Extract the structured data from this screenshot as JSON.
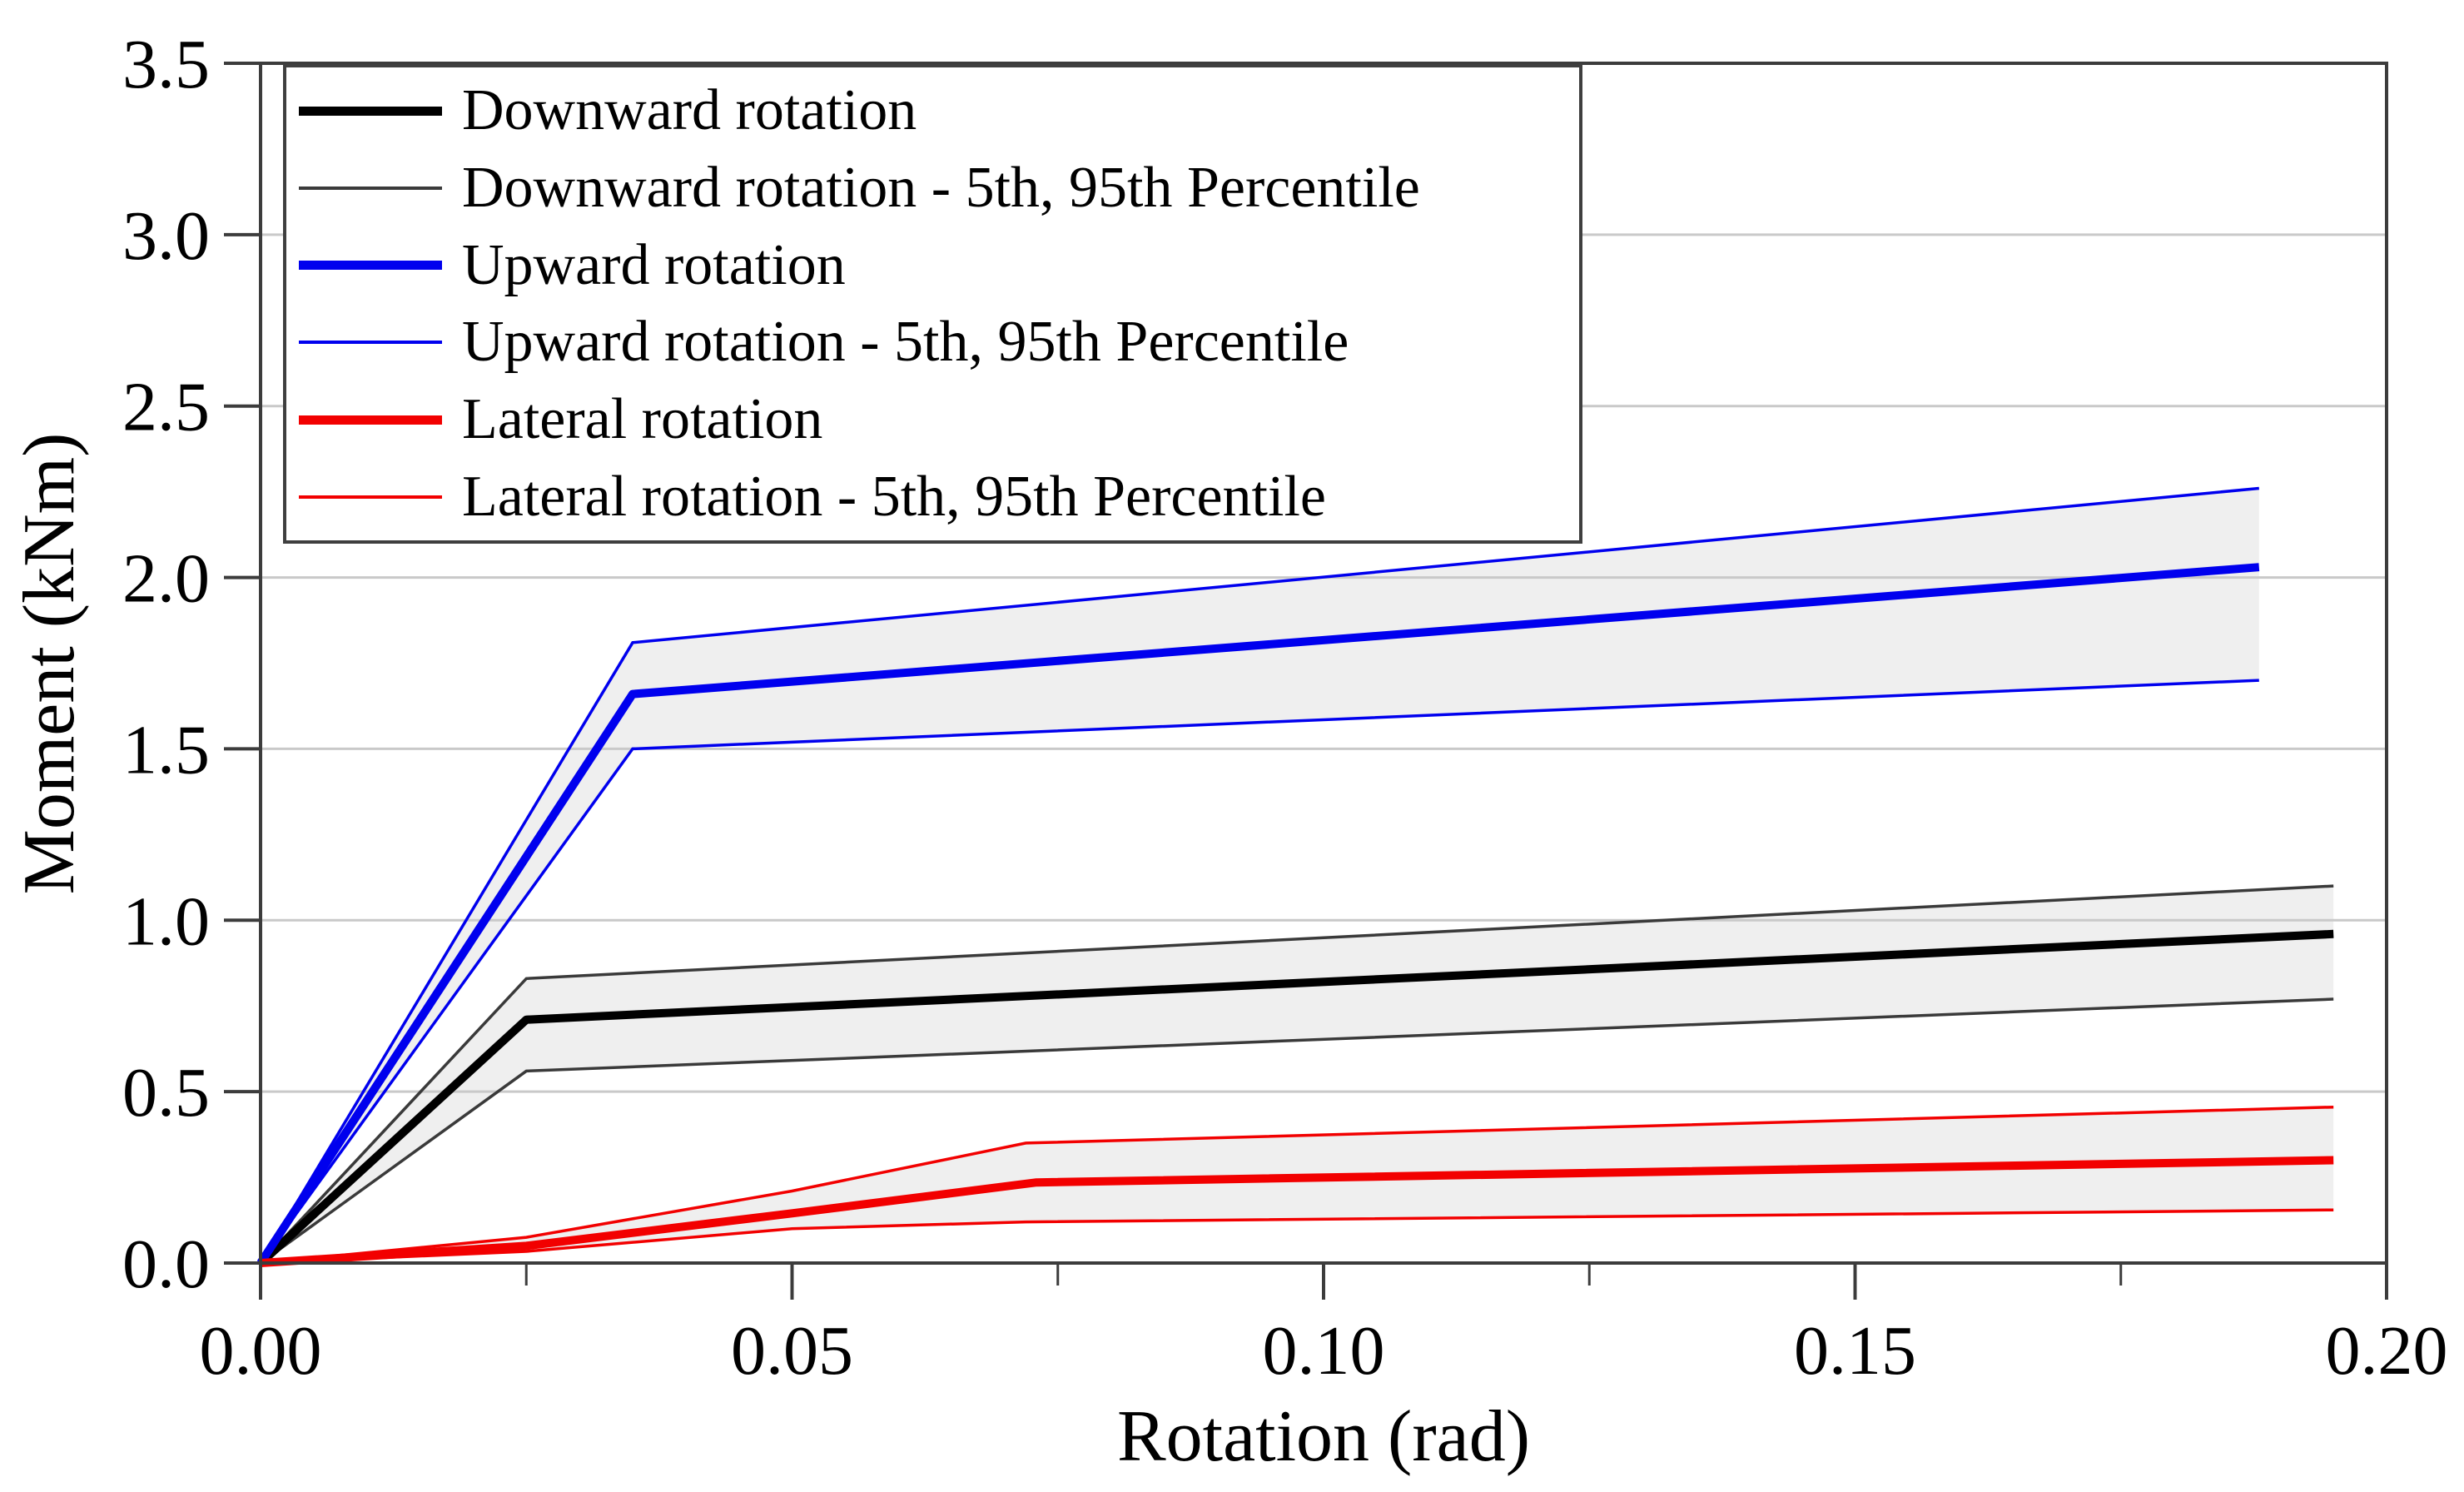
{
  "figure": {
    "background": "#ffffff",
    "frame_color": "#3c3c3c",
    "grid_color": "#c9c9c9",
    "band_fill": "#efefef",
    "text_color": "#000000"
  },
  "chart_data": {
    "type": "line",
    "title": "",
    "xlabel": "Rotation (rad)",
    "ylabel": "Moment (kNm)",
    "xlim": [
      0,
      0.2
    ],
    "ylim": [
      0,
      3.5
    ],
    "grid": "horizontal",
    "legend_position": "upper-left",
    "x_major_ticks": {
      "values": [
        0,
        0.05,
        0.1,
        0.15,
        0.2
      ],
      "labels": [
        "0.00",
        "0.05",
        "0.10",
        "0.15",
        "0.20"
      ]
    },
    "x_minor_ticks": [
      0.025,
      0.075,
      0.125,
      0.175
    ],
    "y_major_ticks": {
      "values": [
        0,
        0.5,
        1.0,
        1.5,
        2.0,
        2.5,
        3.0,
        3.5
      ],
      "labels": [
        "0.0",
        "0.5",
        "1.0",
        "1.5",
        "2.0",
        "2.5",
        "3.0",
        "3.5"
      ]
    },
    "gridlines_y": [
      0.5,
      1.0,
      1.5,
      2.0,
      2.5,
      3.0
    ],
    "series": [
      {
        "name": "Downward rotation",
        "color": "#000000",
        "width": 10,
        "band": false,
        "points": [
          [
            0,
            0
          ],
          [
            0.025,
            0.71
          ],
          [
            0.195,
            0.96
          ]
        ]
      },
      {
        "name": "Downward rotation - 5th, 95th Percentile",
        "color": "#3a3a3a",
        "width": 3.5,
        "band": true,
        "upper": [
          [
            0,
            0
          ],
          [
            0.025,
            0.83
          ],
          [
            0.195,
            1.1
          ]
        ],
        "lower": [
          [
            0,
            0
          ],
          [
            0.025,
            0.56
          ],
          [
            0.195,
            0.77
          ]
        ]
      },
      {
        "name": "Upward rotation",
        "color": "#0000ee",
        "width": 10,
        "band": false,
        "points": [
          [
            0,
            0
          ],
          [
            0.035,
            1.66
          ],
          [
            0.188,
            2.03
          ]
        ]
      },
      {
        "name": "Upward rotation - 5th, 95th Percentile",
        "color": "#0000ee",
        "width": 3.5,
        "band": true,
        "upper": [
          [
            0,
            0
          ],
          [
            0.035,
            1.81
          ],
          [
            0.188,
            2.26
          ]
        ],
        "lower": [
          [
            0,
            0
          ],
          [
            0.035,
            1.5
          ],
          [
            0.188,
            1.7
          ]
        ]
      },
      {
        "name": "Lateral rotation",
        "color": "#f20000",
        "width": 10,
        "band": false,
        "points": [
          [
            0,
            0
          ],
          [
            0.025,
            0.05
          ],
          [
            0.05,
            0.145
          ],
          [
            0.073,
            0.235
          ],
          [
            0.195,
            0.3
          ]
        ]
      },
      {
        "name": "Lateral rotation - 5th, 95th Percentile",
        "color": "#f20000",
        "width": 3.5,
        "band": true,
        "upper": [
          [
            0,
            0
          ],
          [
            0.025,
            0.075
          ],
          [
            0.05,
            0.21
          ],
          [
            0.072,
            0.35
          ],
          [
            0.195,
            0.455
          ]
        ],
        "lower": [
          [
            0,
            0
          ],
          [
            0.025,
            0.034
          ],
          [
            0.05,
            0.1
          ],
          [
            0.072,
            0.12
          ],
          [
            0.195,
            0.155
          ]
        ]
      }
    ]
  }
}
